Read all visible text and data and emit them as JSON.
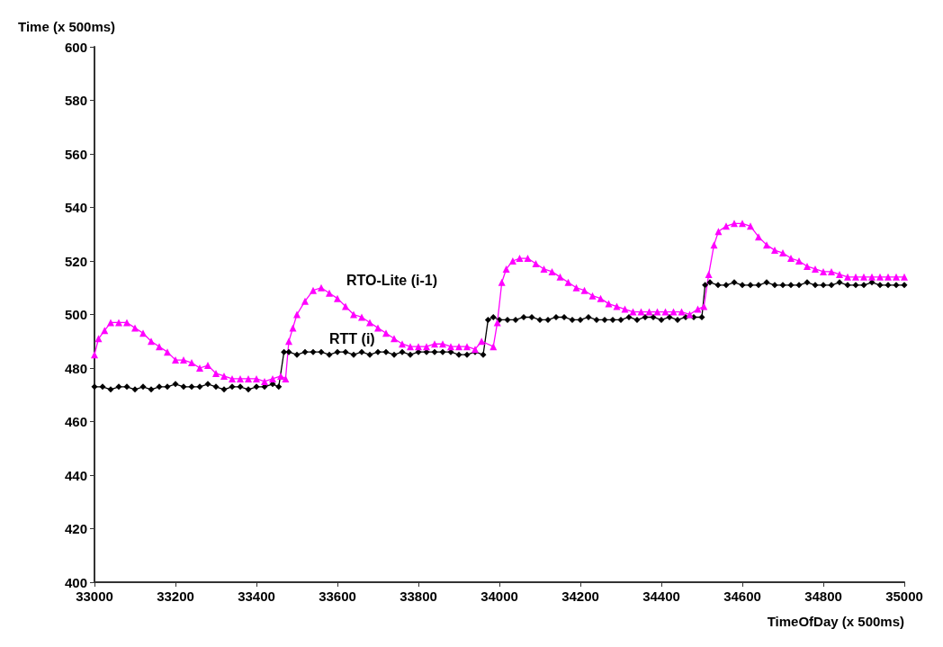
{
  "chart_data": {
    "type": "line",
    "ylabel": "Time (x 500ms)",
    "xlabel": "TimeOfDay (x 500ms)",
    "xlim": [
      33000,
      35000
    ],
    "xticks": [
      33000,
      33200,
      33400,
      33600,
      33800,
      34000,
      34200,
      34400,
      34600,
      34800,
      35000
    ],
    "ylim": [
      400,
      600
    ],
    "yticks": [
      400,
      420,
      440,
      460,
      480,
      500,
      520,
      540,
      560,
      580,
      600
    ],
    "grid": false,
    "line_style": "solid",
    "series": [
      {
        "name": "RTT (i)",
        "color": "#000000",
        "marker": "diamond",
        "x": [
          33000,
          33020,
          33040,
          33060,
          33080,
          33100,
          33120,
          33140,
          33160,
          33180,
          33200,
          33220,
          33240,
          33260,
          33280,
          33300,
          33320,
          33340,
          33360,
          33380,
          33400,
          33420,
          33440,
          33455,
          33468,
          33480,
          33500,
          33520,
          33540,
          33560,
          33580,
          33600,
          33620,
          33640,
          33660,
          33680,
          33700,
          33720,
          33740,
          33760,
          33780,
          33800,
          33820,
          33840,
          33860,
          33880,
          33900,
          33920,
          33940,
          33960,
          33972,
          33985,
          34000,
          34020,
          34040,
          34060,
          34080,
          34100,
          34120,
          34140,
          34160,
          34180,
          34200,
          34220,
          34240,
          34260,
          34280,
          34300,
          34320,
          34340,
          34360,
          34380,
          34400,
          34420,
          34440,
          34460,
          34480,
          34500,
          34508,
          34520,
          34540,
          34560,
          34580,
          34600,
          34620,
          34640,
          34660,
          34680,
          34700,
          34720,
          34740,
          34760,
          34780,
          34800,
          34820,
          34840,
          34860,
          34880,
          34900,
          34920,
          34940,
          34960,
          34980,
          35000
        ],
        "values": [
          473,
          473,
          472,
          473,
          473,
          472,
          473,
          472,
          473,
          473,
          474,
          473,
          473,
          473,
          474,
          473,
          472,
          473,
          473,
          472,
          473,
          473,
          474,
          473,
          486,
          486,
          485,
          486,
          486,
          486,
          485,
          486,
          486,
          485,
          486,
          485,
          486,
          486,
          485,
          486,
          485,
          486,
          486,
          486,
          486,
          486,
          485,
          485,
          486,
          485,
          498,
          499,
          498,
          498,
          498,
          499,
          499,
          498,
          498,
          499,
          499,
          498,
          498,
          499,
          498,
          498,
          498,
          498,
          499,
          498,
          499,
          499,
          498,
          499,
          498,
          499,
          499,
          499,
          511,
          512,
          511,
          511,
          512,
          511,
          511,
          511,
          512,
          511,
          511,
          511,
          511,
          512,
          511,
          511,
          511,
          512,
          511,
          511,
          511,
          512,
          511,
          511,
          511,
          511
        ]
      },
      {
        "name": "RTO-Lite (i-1)",
        "color": "#ff00ff",
        "marker": "triangle",
        "x": [
          33000,
          33010,
          33025,
          33040,
          33060,
          33080,
          33100,
          33120,
          33140,
          33160,
          33180,
          33200,
          33220,
          33240,
          33260,
          33280,
          33300,
          33320,
          33340,
          33360,
          33380,
          33400,
          33420,
          33440,
          33460,
          33472,
          33480,
          33490,
          33500,
          33520,
          33540,
          33560,
          33580,
          33600,
          33620,
          33640,
          33660,
          33680,
          33700,
          33720,
          33740,
          33760,
          33780,
          33800,
          33820,
          33840,
          33860,
          33880,
          33900,
          33920,
          33940,
          33956,
          33985,
          33995,
          34006,
          34017,
          34033,
          34050,
          34070,
          34090,
          34110,
          34130,
          34150,
          34170,
          34190,
          34210,
          34230,
          34250,
          34270,
          34290,
          34310,
          34330,
          34350,
          34370,
          34390,
          34410,
          34430,
          34450,
          34470,
          34490,
          34505,
          34517,
          34530,
          34541,
          34560,
          34580,
          34600,
          34620,
          34640,
          34660,
          34680,
          34700,
          34720,
          34740,
          34760,
          34780,
          34800,
          34820,
          34840,
          34860,
          34880,
          34900,
          34920,
          34940,
          34960,
          34980,
          35000
        ],
        "values": [
          485,
          491,
          494,
          497,
          497,
          497,
          495,
          493,
          490,
          488,
          486,
          483,
          483,
          482,
          480,
          481,
          478,
          477,
          476,
          476,
          476,
          476,
          475,
          476,
          477,
          476,
          490,
          495,
          500,
          505,
          509,
          510,
          508,
          506,
          503,
          500,
          499,
          497,
          495,
          493,
          491,
          489,
          488,
          488,
          488,
          489,
          489,
          488,
          488,
          488,
          487,
          490,
          488,
          497,
          512,
          517,
          520,
          521,
          521,
          519,
          517,
          516,
          514,
          512,
          510,
          509,
          507,
          506,
          504,
          503,
          502,
          501,
          501,
          501,
          501,
          501,
          501,
          501,
          500,
          502,
          503,
          515,
          526,
          531,
          533,
          534,
          534,
          533,
          529,
          526,
          524,
          523,
          521,
          520,
          518,
          517,
          516,
          516,
          515,
          514,
          514,
          514,
          514,
          514,
          514,
          514,
          514
        ]
      }
    ]
  }
}
